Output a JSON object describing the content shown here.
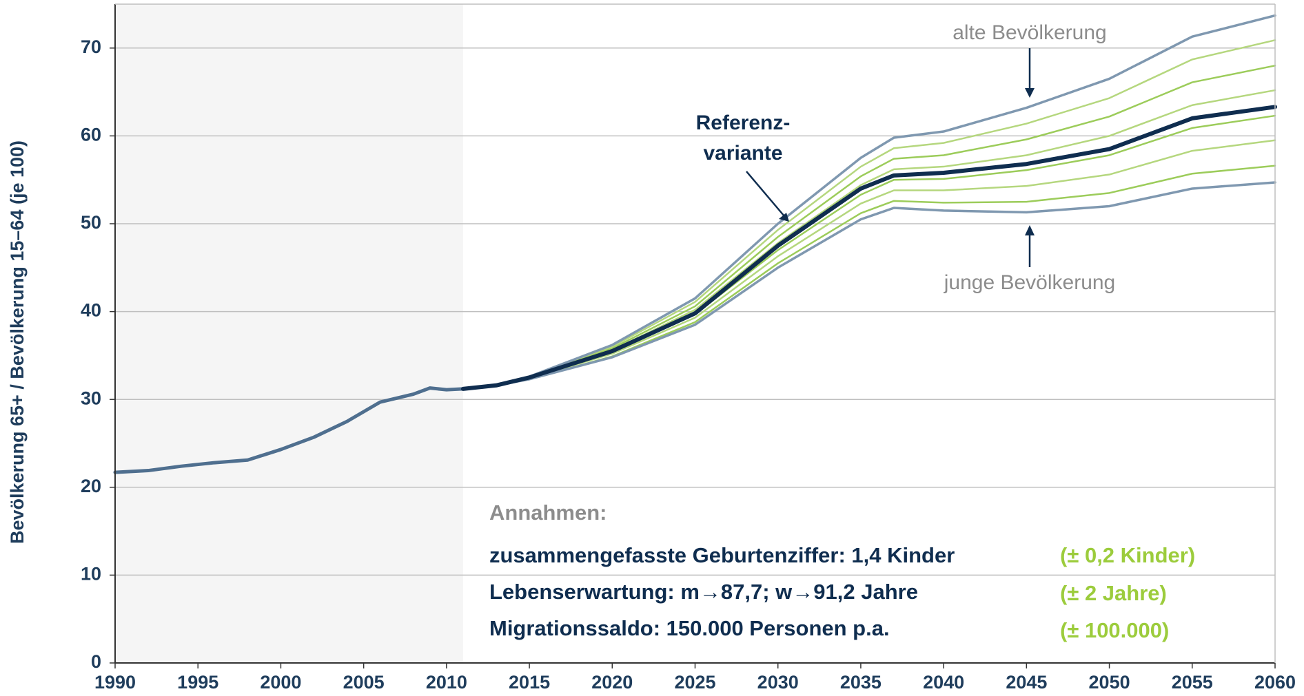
{
  "chart_data": {
    "type": "line",
    "ylabel": "Bevölkerung 65+ / Bevölkerung 15–64 (je 100)",
    "x": [
      1990,
      1992,
      1994,
      1996,
      1998,
      2000,
      2002,
      2004,
      2006,
      2008,
      2009,
      2010,
      2011,
      2013,
      2015,
      2020,
      2025,
      2030,
      2035,
      2037,
      2040,
      2045,
      2050,
      2055,
      2060
    ],
    "xlim": [
      1990,
      2060
    ],
    "xticks": [
      1990,
      1995,
      2000,
      2005,
      2010,
      2015,
      2020,
      2025,
      2030,
      2035,
      2040,
      2045,
      2050,
      2055,
      2060
    ],
    "ylim": [
      0,
      75
    ],
    "yticks": [
      0,
      10,
      20,
      30,
      40,
      50,
      60,
      70
    ],
    "grid": true,
    "shaded_xrange": [
      1990,
      2011
    ],
    "series": [
      {
        "color": "#b5d77e",
        "line_width": 2.5,
        "values": [
          null,
          null,
          null,
          null,
          null,
          null,
          null,
          null,
          null,
          null,
          null,
          null,
          31.2,
          31.6,
          32.6,
          36.0,
          41.1,
          49.3,
          56.5,
          58.6,
          59.2,
          61.4,
          64.3,
          68.7,
          70.9
        ]
      },
      {
        "color": "#9ccc5a",
        "line_width": 2.5,
        "values": [
          null,
          null,
          null,
          null,
          null,
          null,
          null,
          null,
          null,
          null,
          null,
          null,
          31.2,
          31.6,
          32.5,
          35.8,
          40.6,
          48.5,
          55.4,
          57.4,
          57.8,
          59.6,
          62.2,
          66.1,
          68.0
        ]
      },
      {
        "color": "#b5d77e",
        "line_width": 2.5,
        "values": [
          null,
          null,
          null,
          null,
          null,
          null,
          null,
          null,
          null,
          null,
          null,
          null,
          31.2,
          31.6,
          32.5,
          35.6,
          40.2,
          47.8,
          54.4,
          56.2,
          56.5,
          57.8,
          60.0,
          63.5,
          65.2
        ]
      },
      {
        "color": "#9ccc5a",
        "line_width": 2.5,
        "values": [
          null,
          null,
          null,
          null,
          null,
          null,
          null,
          null,
          null,
          null,
          null,
          null,
          31.2,
          31.6,
          32.4,
          35.4,
          39.7,
          47.0,
          53.3,
          55.0,
          55.1,
          56.1,
          57.8,
          60.9,
          62.3
        ]
      },
      {
        "color": "#b5d77e",
        "line_width": 2.5,
        "values": [
          null,
          null,
          null,
          null,
          null,
          null,
          null,
          null,
          null,
          null,
          null,
          null,
          31.2,
          31.6,
          32.4,
          35.2,
          39.3,
          46.3,
          52.3,
          53.8,
          53.8,
          54.3,
          55.6,
          58.3,
          59.5
        ]
      },
      {
        "color": "#9ccc5a",
        "line_width": 2.5,
        "values": [
          null,
          null,
          null,
          null,
          null,
          null,
          null,
          null,
          null,
          null,
          null,
          null,
          31.2,
          31.6,
          32.3,
          34.9,
          38.8,
          45.5,
          51.2,
          52.6,
          52.4,
          52.5,
          53.5,
          55.7,
          56.6
        ]
      },
      {
        "color": "#7f98b0",
        "line_width": 3.5,
        "values": [
          null,
          null,
          null,
          null,
          null,
          null,
          null,
          null,
          null,
          null,
          null,
          null,
          31.2,
          31.6,
          32.6,
          36.2,
          41.5,
          50.0,
          57.5,
          59.8,
          60.5,
          63.2,
          66.5,
          71.3,
          73.7
        ]
      },
      {
        "color": "#7f98b0",
        "line_width": 3.5,
        "values": [
          null,
          null,
          null,
          null,
          null,
          null,
          null,
          null,
          null,
          null,
          null,
          null,
          31.2,
          31.6,
          32.3,
          34.8,
          38.5,
          45.0,
          50.5,
          51.8,
          51.5,
          51.3,
          52.0,
          54.0,
          54.7
        ]
      },
      {
        "color": "#4f6f8f",
        "line_width": 5,
        "values": [
          21.7,
          21.9,
          22.4,
          22.8,
          23.1,
          24.3,
          25.7,
          27.5,
          29.7,
          30.6,
          31.3,
          31.1,
          31.2,
          null,
          null,
          null,
          null,
          null,
          null,
          null,
          null,
          null,
          null,
          null,
          null
        ]
      },
      {
        "color": "#0f2d4f",
        "line_width": 6,
        "values": [
          null,
          null,
          null,
          null,
          null,
          null,
          null,
          null,
          null,
          null,
          null,
          null,
          31.2,
          31.6,
          32.5,
          35.5,
          39.8,
          47.5,
          54.0,
          55.5,
          55.8,
          56.8,
          58.5,
          62.0,
          63.3
        ]
      }
    ],
    "annotations": {
      "old": "alte Bevölkerung",
      "young": "junge Bevölkerung",
      "reference": [
        "Referenz-",
        "variante"
      ],
      "assumptions_title": "Annahmen:",
      "assumptions": [
        {
          "text": "zusammengefasste Geburtenziffer: 1,4 Kinder",
          "range": "(± 0,2 Kinder)"
        },
        {
          "text": "Lebenserwartung: m→87,7; w→91,2 Jahre",
          "range": "(± 2 Jahre)"
        },
        {
          "text": "Migrationssaldo: 150.000 Personen p.a.",
          "range": "(± 100.000)"
        }
      ]
    }
  }
}
